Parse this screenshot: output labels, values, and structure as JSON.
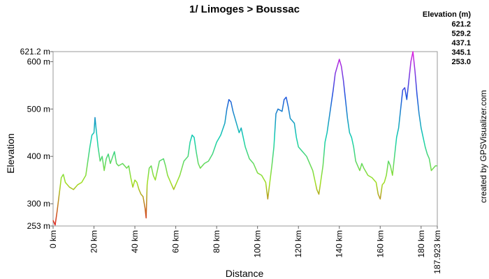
{
  "chart_data": {
    "type": "line",
    "title": "1/ Limoges > Boussac",
    "x_label": "Distance",
    "y_label": "Elevation",
    "credit": "created by GPSVisualizer.com",
    "legend_title": "Elevation (m)",
    "color_scale": [
      {
        "value": 621.2,
        "color": "#e020e0"
      },
      {
        "value": 529.2,
        "color": "#2050e0"
      },
      {
        "value": 437.1,
        "color": "#10d0b0"
      },
      {
        "value": 345.1,
        "color": "#a0e020"
      },
      {
        "value": 253,
        "label": "253.0",
        "color": "#e02020"
      }
    ],
    "xlim": [
      0,
      187.923
    ],
    "ylim": [
      253,
      621.2
    ],
    "xticks": [
      {
        "value": 0,
        "label": "0 km"
      },
      {
        "value": 20,
        "label": "20 km"
      },
      {
        "value": 40,
        "label": "40 km"
      },
      {
        "value": 60,
        "label": "60 km"
      },
      {
        "value": 80,
        "label": "80 km"
      },
      {
        "value": 100,
        "label": "100 km"
      },
      {
        "value": 120,
        "label": "120 km"
      },
      {
        "value": 140,
        "label": "140 km"
      },
      {
        "value": 160,
        "label": "160 km"
      },
      {
        "value": 180,
        "label": "180 km"
      },
      {
        "value": 187.923,
        "label": "187.923 km"
      }
    ],
    "yticks": [
      {
        "value": 253,
        "label": "253 m"
      },
      {
        "value": 300,
        "label": "300 m"
      },
      {
        "value": 400,
        "label": "400 m"
      },
      {
        "value": 500,
        "label": "500 m"
      },
      {
        "value": 600,
        "label": "600 m"
      },
      {
        "value": 621.2,
        "label": "621.2 m"
      }
    ],
    "x": [
      0,
      1,
      2,
      3,
      4,
      5,
      6,
      8,
      10,
      12,
      14,
      16,
      17,
      18,
      19,
      20,
      20.5,
      21,
      22,
      23,
      24,
      25,
      26,
      27,
      28,
      30,
      31,
      32,
      34,
      36,
      37,
      38,
      39,
      40,
      41,
      42,
      43,
      44,
      45,
      45.5,
      46,
      47,
      48,
      49,
      50,
      52,
      54,
      55,
      56,
      58,
      59,
      60,
      62,
      64,
      66,
      67,
      68,
      69,
      70,
      71,
      72,
      74,
      76,
      78,
      80,
      82,
      84,
      85,
      86,
      87,
      88,
      90,
      91,
      92,
      94,
      96,
      98,
      100,
      102,
      104,
      105,
      106,
      107,
      108,
      109,
      110,
      112,
      113,
      114,
      115,
      116,
      118,
      119,
      120,
      121,
      122,
      124,
      126,
      127,
      128,
      129,
      130,
      131,
      132,
      133,
      134,
      135,
      136,
      137,
      138,
      139,
      140,
      141,
      142,
      143,
      144,
      145,
      146,
      147,
      148,
      149,
      150,
      151,
      152,
      154,
      156,
      158,
      159,
      160,
      161,
      162,
      163,
      164,
      165,
      166,
      167,
      168,
      169,
      170,
      171,
      172,
      173,
      174,
      175,
      176,
      177,
      178,
      179,
      180,
      181,
      182,
      183,
      184,
      185,
      186,
      187,
      187.923
    ],
    "series": [
      {
        "name": "Elevation",
        "values": [
          265,
          255,
          285,
          320,
          355,
          362,
          345,
          335,
          330,
          340,
          345,
          360,
          390,
          420,
          445,
          450,
          482,
          460,
          420,
          390,
          400,
          370,
          395,
          405,
          385,
          410,
          385,
          380,
          385,
          375,
          380,
          355,
          335,
          350,
          345,
          330,
          320,
          315,
          290,
          270,
          340,
          375,
          380,
          360,
          350,
          390,
          395,
          380,
          360,
          340,
          330,
          340,
          360,
          390,
          400,
          430,
          445,
          440,
          410,
          385,
          375,
          385,
          390,
          405,
          430,
          445,
          470,
          500,
          520,
          515,
          495,
          465,
          450,
          460,
          420,
          395,
          385,
          365,
          360,
          345,
          310,
          345,
          380,
          420,
          490,
          500,
          495,
          520,
          525,
          505,
          480,
          470,
          440,
          420,
          415,
          410,
          400,
          380,
          370,
          350,
          330,
          320,
          350,
          380,
          430,
          450,
          480,
          510,
          540,
          575,
          590,
          605,
          590,
          560,
          520,
          480,
          450,
          440,
          420,
          390,
          380,
          370,
          385,
          375,
          360,
          355,
          345,
          320,
          310,
          340,
          345,
          360,
          390,
          380,
          360,
          400,
          440,
          460,
          500,
          540,
          545,
          520,
          560,
          600,
          621.2,
          580,
          530,
          490,
          460,
          440,
          420,
          405,
          395,
          370,
          375,
          380,
          380
        ]
      }
    ]
  }
}
